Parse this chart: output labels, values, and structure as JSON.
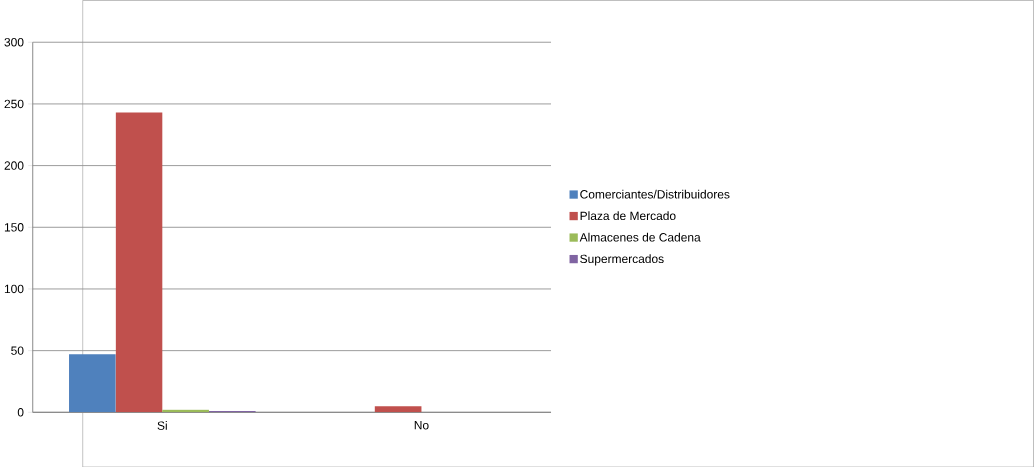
{
  "chart_data": {
    "type": "bar",
    "categories": [
      "Si",
      "No"
    ],
    "series": [
      {
        "name": "Comerciantes/Distribuidores",
        "color": "#4f81bd",
        "values": [
          47,
          0
        ]
      },
      {
        "name": "Plaza de Mercado",
        "color": "#c0504d",
        "values": [
          243,
          5
        ]
      },
      {
        "name": "Almacenes de Cadena",
        "color": "#9bbb59",
        "values": [
          2,
          0
        ]
      },
      {
        "name": "Supermercados",
        "color": "#8064a2",
        "values": [
          1,
          0
        ]
      }
    ],
    "ylim": [
      0,
      300
    ],
    "yticks": [
      0,
      50,
      100,
      150,
      200,
      250,
      300
    ],
    "grid": "y",
    "legend": "right"
  }
}
